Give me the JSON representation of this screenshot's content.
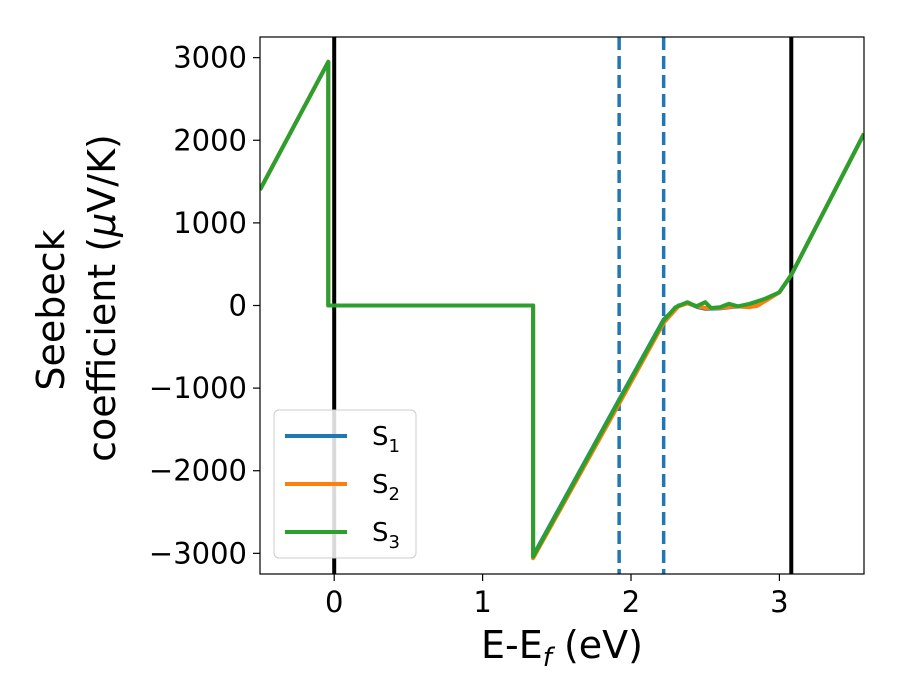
{
  "chart_data": {
    "type": "line",
    "xlabel": "E-E_f (eV)",
    "ylabel_line1": "Seebeck",
    "ylabel_line2": "coefficient  (μV/K)",
    "xlim": [
      -0.5,
      3.57
    ],
    "ylim": [
      -3250,
      3250
    ],
    "x_ticks": [
      0,
      1,
      2,
      3
    ],
    "y_ticks": [
      -3000,
      -2000,
      -1000,
      0,
      1000,
      2000,
      3000
    ],
    "x_tick_labels": [
      "0",
      "1",
      "2",
      "3"
    ],
    "y_tick_labels": [
      "−3000",
      "−2000",
      "−1000",
      "0",
      "1000",
      "2000",
      "3000"
    ],
    "vertical_lines": [
      {
        "x": 0.0,
        "style": "solid",
        "color": "#000000"
      },
      {
        "x": 3.08,
        "style": "solid",
        "color": "#000000"
      },
      {
        "x": 1.92,
        "style": "dashed",
        "color": "#1f77b4"
      },
      {
        "x": 2.22,
        "style": "dashed",
        "color": "#1f77b4"
      }
    ],
    "legend_position": "lower-left",
    "series": [
      {
        "name": "S_1",
        "color": "#1f77b4",
        "points": [
          [
            -0.5,
            1400
          ],
          [
            -0.04,
            2950
          ],
          [
            -0.04,
            0
          ],
          [
            1.34,
            0
          ],
          [
            1.34,
            -3030
          ],
          [
            1.92,
            -1140
          ],
          [
            2.22,
            -170
          ],
          [
            2.32,
            0
          ],
          [
            2.38,
            30
          ],
          [
            2.45,
            -20
          ],
          [
            2.5,
            -40
          ],
          [
            2.6,
            -35
          ],
          [
            2.7,
            -15
          ],
          [
            2.8,
            -5
          ],
          [
            2.9,
            60
          ],
          [
            3.0,
            160
          ],
          [
            3.08,
            370
          ],
          [
            3.57,
            2080
          ]
        ]
      },
      {
        "name": "S_2",
        "color": "#ff7f0e",
        "points": [
          [
            -0.5,
            1400
          ],
          [
            -0.04,
            2950
          ],
          [
            -0.04,
            0
          ],
          [
            1.34,
            0
          ],
          [
            1.34,
            -3060
          ],
          [
            1.92,
            -1190
          ],
          [
            2.22,
            -210
          ],
          [
            2.32,
            -10
          ],
          [
            2.38,
            25
          ],
          [
            2.45,
            -10
          ],
          [
            2.5,
            -30
          ],
          [
            2.6,
            -30
          ],
          [
            2.7,
            -10
          ],
          [
            2.8,
            -20
          ],
          [
            2.85,
            -5
          ],
          [
            2.92,
            70
          ],
          [
            3.0,
            160
          ],
          [
            3.08,
            370
          ],
          [
            3.57,
            2080
          ]
        ]
      },
      {
        "name": "S_3",
        "color": "#2ca02c",
        "points": [
          [
            -0.5,
            1400
          ],
          [
            -0.04,
            2950
          ],
          [
            -0.04,
            0
          ],
          [
            1.34,
            0
          ],
          [
            1.34,
            -3040
          ],
          [
            1.92,
            -1150
          ],
          [
            2.22,
            -180
          ],
          [
            2.3,
            -20
          ],
          [
            2.38,
            40
          ],
          [
            2.44,
            -10
          ],
          [
            2.5,
            40
          ],
          [
            2.54,
            -30
          ],
          [
            2.6,
            -20
          ],
          [
            2.66,
            20
          ],
          [
            2.72,
            -10
          ],
          [
            2.8,
            20
          ],
          [
            2.9,
            80
          ],
          [
            3.0,
            160
          ],
          [
            3.08,
            370
          ],
          [
            3.57,
            2080
          ]
        ]
      }
    ]
  },
  "legend": {
    "items": [
      {
        "base": "S",
        "sub": "1"
      },
      {
        "base": "S",
        "sub": "2"
      },
      {
        "base": "S",
        "sub": "3"
      }
    ]
  }
}
